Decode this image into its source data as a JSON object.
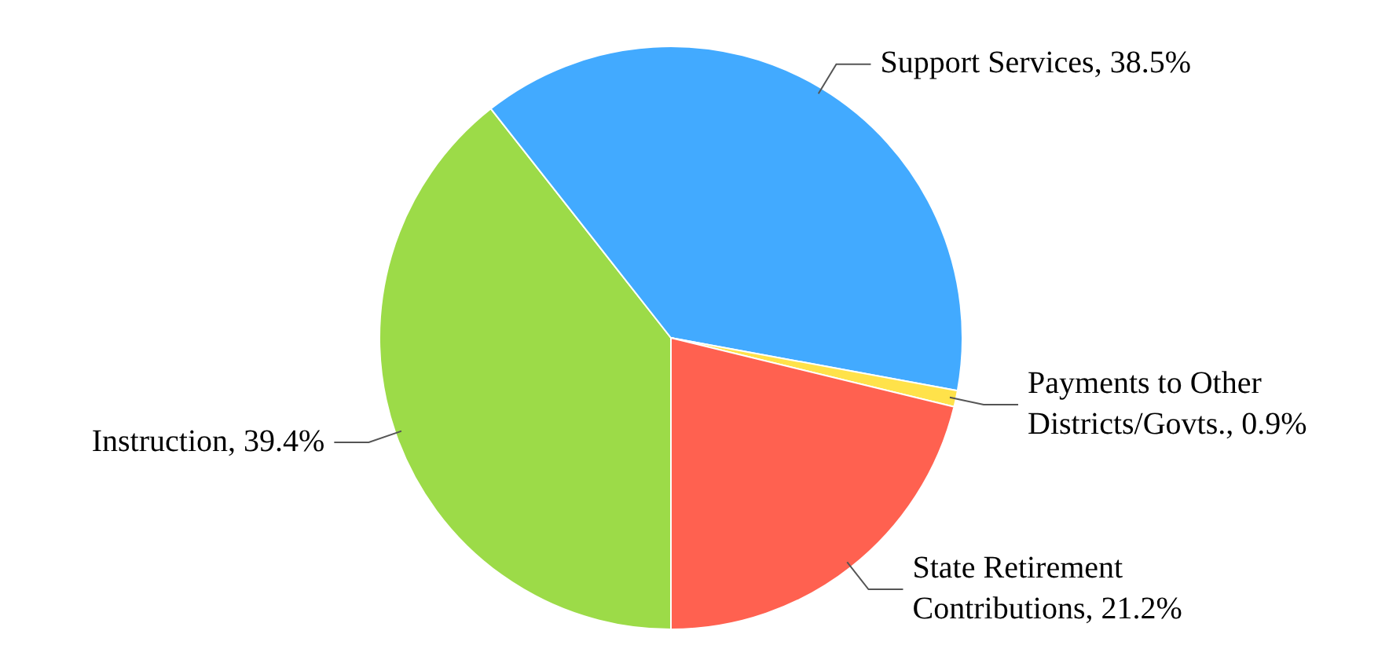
{
  "chart_data": {
    "type": "pie",
    "categories": [
      "Instruction",
      "Support Services",
      "Payments to Other Districts/Govts.",
      "State Retirement Contributions"
    ],
    "values": [
      39.4,
      38.5,
      0.9,
      21.2
    ],
    "value_labels": [
      "39.4%",
      "38.5%",
      "0.9%",
      "21.2%"
    ],
    "colors": [
      "#9cdb48",
      "#42aaff",
      "#ffe24a",
      "#ff6150"
    ],
    "legend": false
  }
}
